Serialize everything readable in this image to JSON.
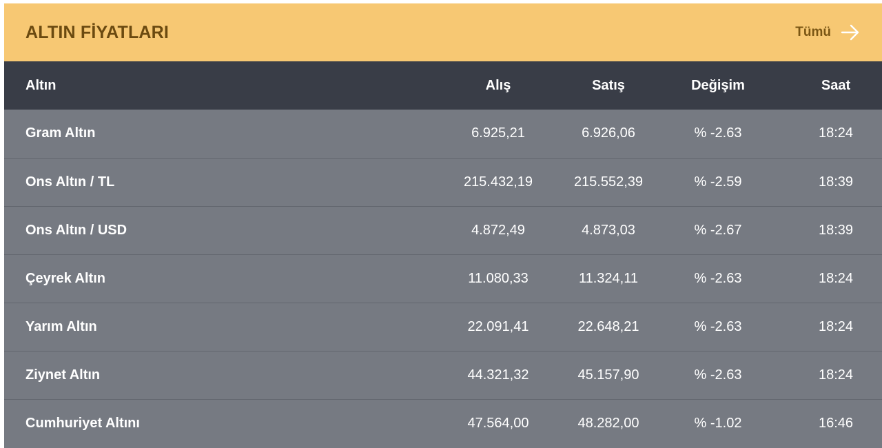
{
  "header": {
    "title": "ALTIN FİYATLARI",
    "more_label": "Tümü",
    "more_icon": "arrow-right-icon",
    "background": "#f7c873",
    "title_color": "#6b4a10"
  },
  "table": {
    "columns": [
      "Altın",
      "Alış",
      "Satış",
      "Değişim",
      "Saat"
    ],
    "rows": [
      {
        "name": "Gram Altın",
        "buy": "6.925,21",
        "sell": "6.926,06",
        "change": "% -2.63",
        "time": "18:24"
      },
      {
        "name": "Ons Altın / TL",
        "buy": "215.432,19",
        "sell": "215.552,39",
        "change": "% -2.59",
        "time": "18:39"
      },
      {
        "name": "Ons Altın / USD",
        "buy": "4.872,49",
        "sell": "4.873,03",
        "change": "% -2.67",
        "time": "18:39"
      },
      {
        "name": "Çeyrek Altın",
        "buy": "11.080,33",
        "sell": "11.324,11",
        "change": "% -2.63",
        "time": "18:24"
      },
      {
        "name": "Yarım Altın",
        "buy": "22.091,41",
        "sell": "22.648,21",
        "change": "% -2.63",
        "time": "18:24"
      },
      {
        "name": "Ziynet Altın",
        "buy": "44.321,32",
        "sell": "45.157,90",
        "change": "% -2.63",
        "time": "18:24"
      },
      {
        "name": "Cumhuriyet Altını",
        "buy": "47.564,00",
        "sell": "48.282,00",
        "change": "% -1.02",
        "time": "16:46"
      }
    ],
    "header_background": "#393d47",
    "row_background": "#767a82"
  }
}
